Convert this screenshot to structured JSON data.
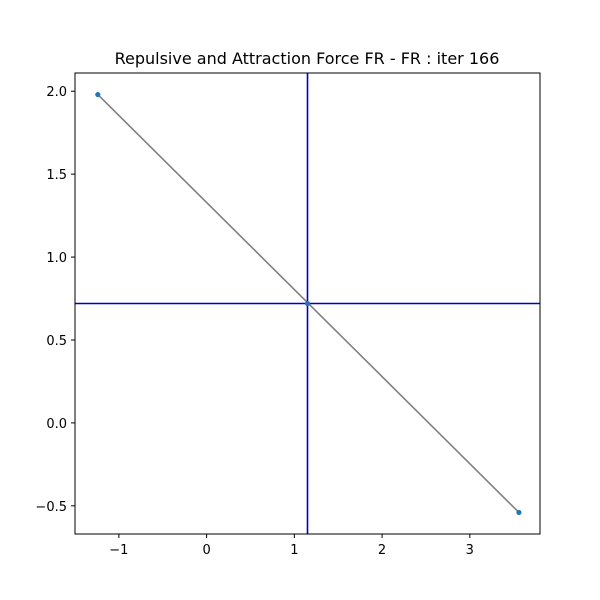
{
  "chart_data": {
    "type": "scatter",
    "title": "Repulsive and Attraction Force FR - FR : iter 166",
    "xlabel": "",
    "ylabel": "",
    "xlim": [
      -1.5,
      3.8
    ],
    "ylim": [
      -0.67,
      2.11
    ],
    "x_ticks": [
      -1,
      0,
      1,
      2,
      3
    ],
    "x_tick_labels": [
      "−1",
      "0",
      "1",
      "2",
      "3"
    ],
    "y_ticks": [
      -0.5,
      0.0,
      0.5,
      1.0,
      1.5,
      2.0
    ],
    "y_tick_labels": [
      "−0.5",
      "0.0",
      "0.5",
      "1.0",
      "1.5",
      "2.0"
    ],
    "grid": false,
    "points": [
      {
        "x": -1.24,
        "y": 1.98
      },
      {
        "x": 1.15,
        "y": 0.72
      },
      {
        "x": 3.56,
        "y": -0.54
      }
    ],
    "edges": [
      {
        "from": 0,
        "to": 2
      }
    ],
    "reference_lines": {
      "vertical_x": 1.15,
      "horizontal_y": 0.72
    },
    "colors": {
      "points": "#1f77b4",
      "edge": "#808080",
      "reference": "#0000cc",
      "axes": "#000000"
    }
  }
}
